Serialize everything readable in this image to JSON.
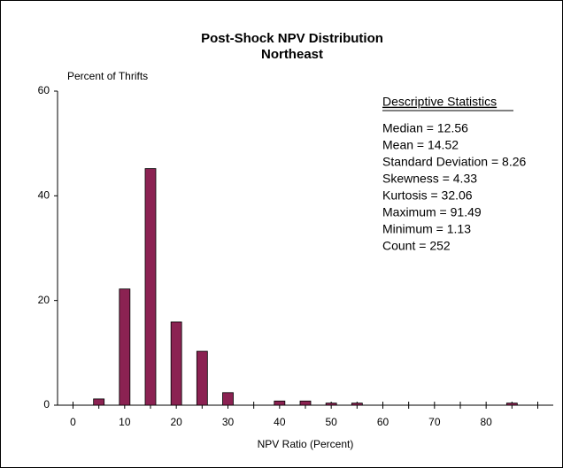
{
  "chart_data": {
    "type": "bar",
    "title": "Post-Shock NPV Distribution",
    "subtitle": "Northeast",
    "ylabel": "Percent of Thrifts",
    "xlabel": "NPV Ratio (Percent)",
    "x": [
      5,
      10,
      15,
      20,
      25,
      30,
      40,
      45,
      50,
      55,
      85
    ],
    "values": [
      1.2,
      22.2,
      45.2,
      15.9,
      10.3,
      2.4,
      0.8,
      0.8,
      0.4,
      0.4,
      0.4
    ],
    "color": "#8b2252",
    "xlim": [
      -3,
      93
    ],
    "ylim": [
      0,
      60
    ],
    "xticks": [
      0,
      10,
      20,
      30,
      40,
      50,
      60,
      70,
      80
    ],
    "xminorticks": [
      5,
      15,
      25,
      35,
      45,
      55,
      65,
      75,
      85,
      90
    ],
    "yticks": [
      0,
      20,
      40,
      60
    ],
    "stats_title": "Descriptive Statistics",
    "stats": [
      "Median = 12.56",
      "Mean = 14.52",
      "Standard Deviation = 8.26",
      "Skewness = 4.33",
      "Kurtosis = 32.06",
      "Maximum = 91.49",
      "Minimum = 1.13",
      "Count = 252"
    ]
  }
}
